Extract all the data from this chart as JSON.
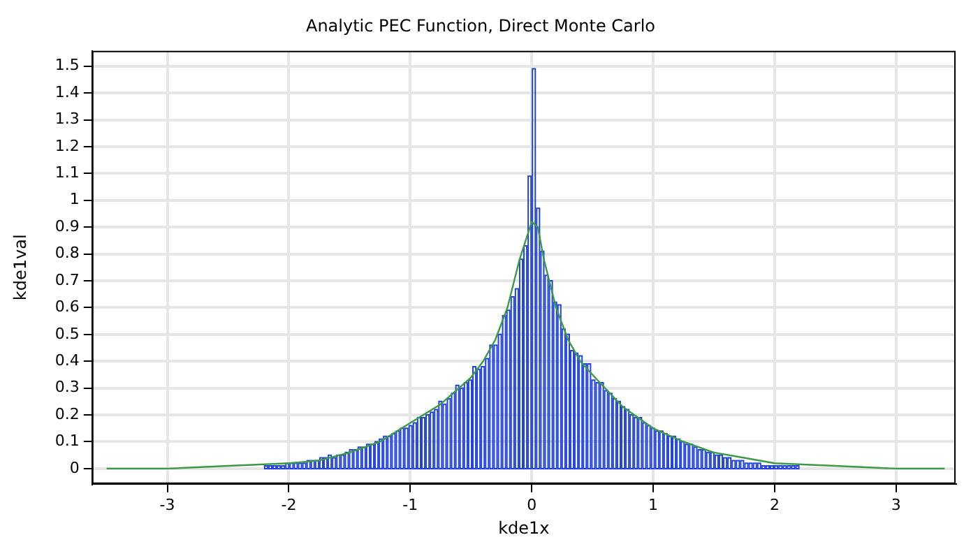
{
  "chart_data": {
    "type": "histogram",
    "title": "Analytic PEC Function, Direct Monte Carlo",
    "xlabel": "kde1x",
    "ylabel": "kde1val",
    "xlim": [
      -3.62,
      3.49
    ],
    "xticks": [
      -3,
      -2,
      -1,
      0,
      1,
      2,
      3
    ],
    "ylim": [
      -0.057,
      1.557
    ],
    "yticks": [
      0,
      0.1,
      0.2,
      0.3,
      0.4,
      0.5,
      0.6,
      0.7,
      0.8,
      0.9,
      1,
      1.1,
      1.2,
      1.3,
      1.4,
      1.5
    ],
    "grid": true,
    "series": [
      {
        "type": "histogram",
        "color": "#2244dd",
        "bins": [
          -2.205,
          -2.17,
          -2.135,
          -2.1,
          -2.065,
          -2.03,
          -1.995,
          -1.96,
          -1.925,
          -1.89,
          -1.855,
          -1.82,
          -1.785,
          -1.75,
          -1.715,
          -1.68,
          -1.645,
          -1.61,
          -1.575,
          -1.54,
          -1.505,
          -1.47,
          -1.435,
          -1.4,
          -1.365,
          -1.33,
          -1.295,
          -1.26,
          -1.225,
          -1.19,
          -1.155,
          -1.12,
          -1.085,
          -1.05,
          -1.015,
          -0.98,
          -0.945,
          -0.91,
          -0.875,
          -0.84,
          -0.805,
          -0.77,
          -0.735,
          -0.7,
          -0.665,
          -0.63,
          -0.595,
          -0.56,
          -0.525,
          -0.49,
          -0.455,
          -0.42,
          -0.385,
          -0.35,
          -0.315,
          -0.28,
          -0.245,
          -0.21,
          -0.175,
          -0.14,
          -0.105,
          -0.07,
          -0.035,
          0,
          0.035,
          0.07,
          0.105,
          0.14,
          0.175,
          0.21,
          0.245,
          0.28,
          0.315,
          0.35,
          0.385,
          0.42,
          0.455,
          0.49,
          0.525,
          0.56,
          0.595,
          0.63,
          0.665,
          0.7,
          0.735,
          0.77,
          0.805,
          0.84,
          0.875,
          0.91,
          0.945,
          0.98,
          1.015,
          1.05,
          1.085,
          1.12,
          1.155,
          1.19,
          1.225,
          1.26,
          1.295,
          1.33,
          1.365,
          1.4,
          1.435,
          1.47,
          1.505,
          1.54,
          1.575,
          1.61,
          1.645,
          1.68,
          1.715,
          1.75,
          1.785,
          1.82,
          1.855,
          1.89,
          1.925,
          1.96,
          1.995,
          2.03,
          2.065,
          2.1,
          2.135,
          2.17,
          2.205
        ],
        "values": [
          0.01,
          0.01,
          0.01,
          0.01,
          0.01,
          0.02,
          0.02,
          0.02,
          0.02,
          0.02,
          0.03,
          0.03,
          0.03,
          0.04,
          0.04,
          0.05,
          0.04,
          0.05,
          0.05,
          0.06,
          0.07,
          0.07,
          0.08,
          0.08,
          0.09,
          0.09,
          0.1,
          0.11,
          0.12,
          0.12,
          0.13,
          0.14,
          0.15,
          0.15,
          0.16,
          0.17,
          0.19,
          0.19,
          0.2,
          0.21,
          0.22,
          0.25,
          0.24,
          0.26,
          0.28,
          0.31,
          0.3,
          0.32,
          0.33,
          0.38,
          0.37,
          0.38,
          0.41,
          0.46,
          0.46,
          0.5,
          0.57,
          0.59,
          0.64,
          0.67,
          0.78,
          0.83,
          1.09,
          1.49,
          0.97,
          0.81,
          0.72,
          0.7,
          0.62,
          0.61,
          0.52,
          0.5,
          0.44,
          0.43,
          0.42,
          0.39,
          0.39,
          0.33,
          0.32,
          0.32,
          0.29,
          0.28,
          0.26,
          0.25,
          0.23,
          0.22,
          0.2,
          0.19,
          0.19,
          0.17,
          0.16,
          0.15,
          0.14,
          0.14,
          0.13,
          0.12,
          0.12,
          0.11,
          0.1,
          0.09,
          0.09,
          0.08,
          0.07,
          0.07,
          0.06,
          0.06,
          0.05,
          0.05,
          0.04,
          0.04,
          0.03,
          0.03,
          0.03,
          0.02,
          0.02,
          0.02,
          0.02,
          0.01,
          0.01,
          0.01,
          0.01,
          0.01,
          0.01,
          0.01,
          0.01,
          0.01
        ]
      },
      {
        "type": "line",
        "color": "#3c9a46",
        "x": [
          -3.5,
          -3,
          -2.5,
          -2,
          -1.75,
          -1.5,
          -1.25,
          -1,
          -0.75,
          -0.5,
          -0.4,
          -0.3,
          -0.2,
          -0.1,
          0,
          0.05,
          0.1,
          0.2,
          0.3,
          0.4,
          0.5,
          0.75,
          1,
          1.25,
          1.5,
          1.75,
          2,
          2.5,
          3,
          3.4
        ],
        "values": [
          0,
          0,
          0.01,
          0.02,
          0.03,
          0.06,
          0.1,
          0.17,
          0.24,
          0.34,
          0.4,
          0.48,
          0.6,
          0.78,
          0.92,
          0.9,
          0.78,
          0.6,
          0.48,
          0.4,
          0.35,
          0.23,
          0.15,
          0.1,
          0.06,
          0.04,
          0.02,
          0.01,
          0,
          0
        ]
      }
    ]
  }
}
